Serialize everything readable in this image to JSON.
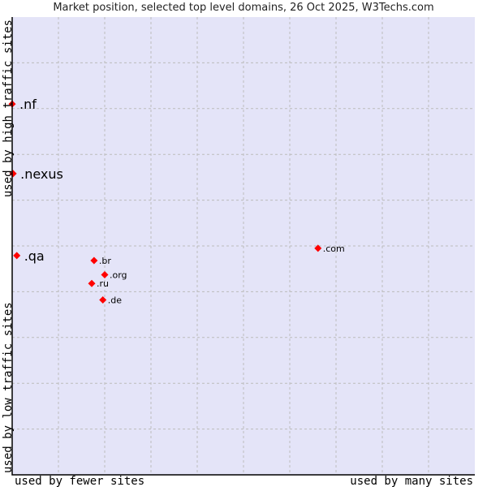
{
  "chart_data": {
    "type": "scatter",
    "title": "Market position, selected top level domains, 26 Oct 2025, W3Techs.com",
    "xlabel_low": "used by fewer sites",
    "xlabel_high": "used by many sites",
    "ylabel_low": "used by low traffic sites",
    "ylabel_high": "used by high traffic sites",
    "xlim": [
      0,
      10
    ],
    "ylim": [
      0,
      10
    ],
    "grid": true,
    "points": [
      {
        "label": ".nf",
        "x": 0.0,
        "y": 8.1,
        "highlight": true
      },
      {
        "label": ".nexus",
        "x": 0.02,
        "y": 6.58,
        "highlight": true
      },
      {
        "label": ".qa",
        "x": 0.1,
        "y": 4.79,
        "highlight": true
      },
      {
        "label": ".com",
        "x": 6.61,
        "y": 4.95,
        "highlight": false
      },
      {
        "label": ".br",
        "x": 1.77,
        "y": 4.68,
        "highlight": false
      },
      {
        "label": ".org",
        "x": 2.0,
        "y": 4.37,
        "highlight": false
      },
      {
        "label": ".ru",
        "x": 1.72,
        "y": 4.18,
        "highlight": false
      },
      {
        "label": ".de",
        "x": 1.96,
        "y": 3.82,
        "highlight": false
      }
    ],
    "colors": {
      "background": "#e4e4f8",
      "point": "#ff0000",
      "grid": "#bbbbbb"
    }
  }
}
